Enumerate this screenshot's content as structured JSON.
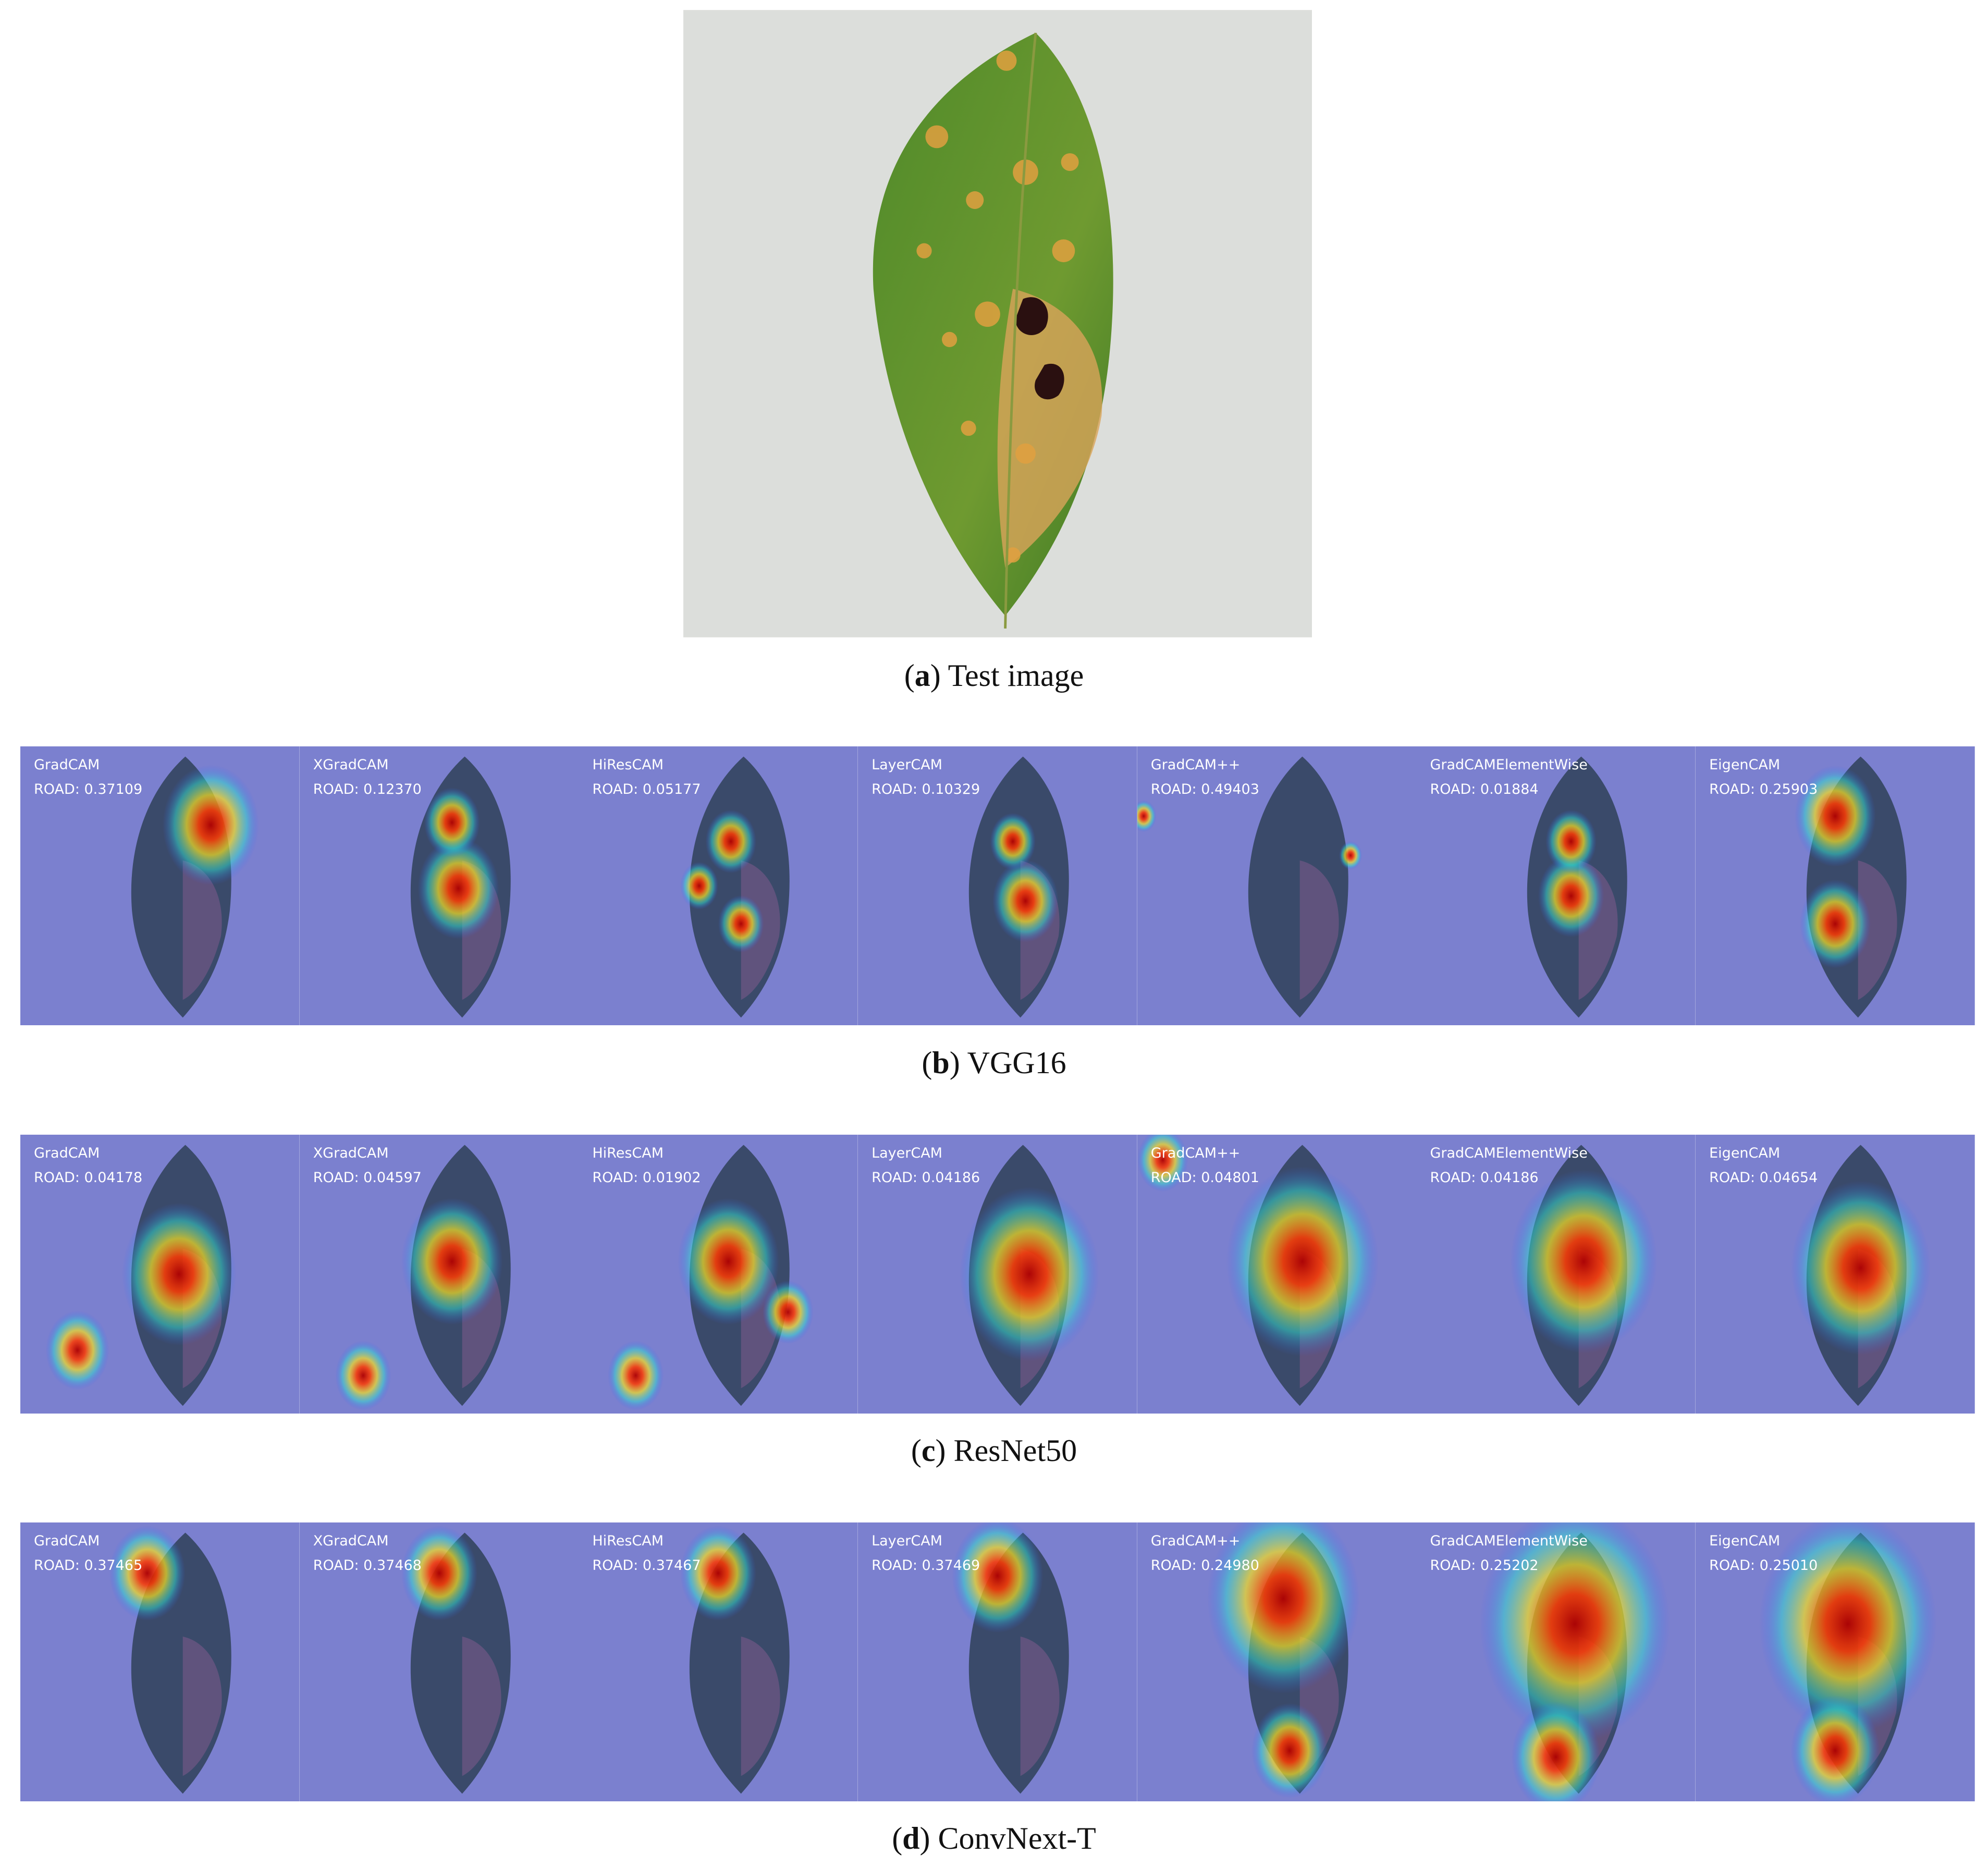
{
  "figure": {
    "test_image": {
      "caption": {
        "before": "(",
        "label": "a",
        "after": ") Test image"
      }
    },
    "rows": [
      {
        "caption": {
          "before": "(",
          "label": "b",
          "after": ") VGG16"
        },
        "panels": [
          {
            "method": "GradCAM",
            "road": "ROAD: 0.37109"
          },
          {
            "method": "XGradCAM",
            "road": "ROAD: 0.12370"
          },
          {
            "method": "HiResCAM",
            "road": "ROAD: 0.05177"
          },
          {
            "method": "LayerCAM",
            "road": "ROAD: 0.10329"
          },
          {
            "method": "GradCAM++",
            "road": "ROAD: 0.49403"
          },
          {
            "method": "GradCAMElementWise",
            "road": "ROAD: 0.01884"
          },
          {
            "method": "EigenCAM",
            "road": "ROAD: 0.25903"
          }
        ]
      },
      {
        "caption": {
          "before": "(",
          "label": "c",
          "after": ") ResNet50"
        },
        "panels": [
          {
            "method": "GradCAM",
            "road": "ROAD: 0.04178"
          },
          {
            "method": "XGradCAM",
            "road": "ROAD: 0.04597"
          },
          {
            "method": "HiResCAM",
            "road": "ROAD: 0.01902"
          },
          {
            "method": "LayerCAM",
            "road": "ROAD: 0.04186"
          },
          {
            "method": "GradCAM++",
            "road": "ROAD: 0.04801"
          },
          {
            "method": "GradCAMElementWise",
            "road": "ROAD: 0.04186"
          },
          {
            "method": "EigenCAM",
            "road": "ROAD: 0.04654"
          }
        ]
      },
      {
        "caption": {
          "before": "(",
          "label": "d",
          "after": ") ConvNext-T"
        },
        "panels": [
          {
            "method": "GradCAM",
            "road": "ROAD: 0.37465"
          },
          {
            "method": "XGradCAM",
            "road": "ROAD: 0.37468"
          },
          {
            "method": "HiResCAM",
            "road": "ROAD: 0.37467"
          },
          {
            "method": "LayerCAM",
            "road": "ROAD: 0.37469"
          },
          {
            "method": "GradCAM++",
            "road": "ROAD: 0.24980"
          },
          {
            "method": "GradCAMElementWise",
            "road": "ROAD: 0.25202"
          },
          {
            "method": "EigenCAM",
            "road": "ROAD: 0.25010"
          }
        ]
      }
    ]
  }
}
